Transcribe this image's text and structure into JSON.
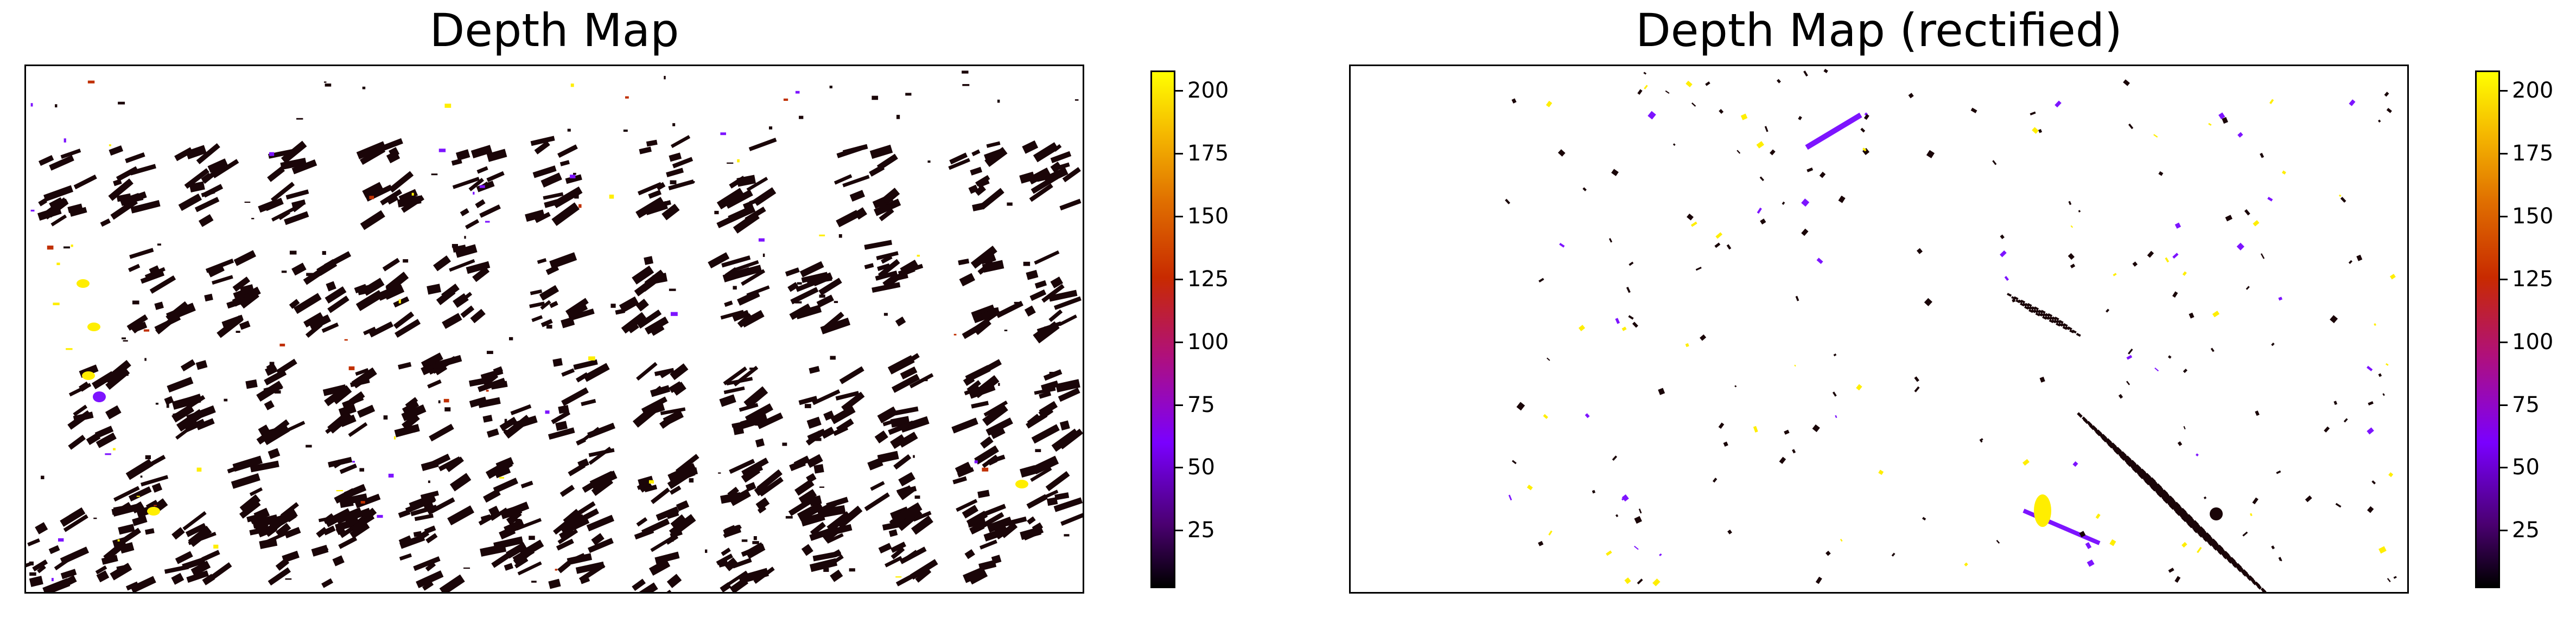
{
  "chart_data": [
    {
      "type": "heatmap",
      "title": "Depth Map",
      "colormap": "gnuplot",
      "color_range": [
        2,
        208
      ],
      "colorbar_ticks": [
        "25",
        "50",
        "75",
        "100",
        "125",
        "150",
        "175",
        "200"
      ],
      "tick_values": [
        25,
        50,
        75,
        100,
        125,
        150,
        175,
        200
      ],
      "axes_visible": false,
      "content": "sparse depth estimates; dense dark (near 0) blobs in a repeating pattern, scattered yellow and purple specks"
    },
    {
      "type": "heatmap",
      "title": "Depth Map (rectified)",
      "colormap": "gnuplot",
      "color_range": [
        2,
        208
      ],
      "colorbar_ticks": [
        "25",
        "50",
        "75",
        "100",
        "125",
        "150",
        "175",
        "200"
      ],
      "tick_values": [
        25,
        50,
        75,
        100,
        125,
        150,
        175,
        200
      ],
      "axes_visible": false,
      "content": "sparse depth estimates; dark diagonal streaks in lower right, scattered yellow and purple fragments"
    }
  ],
  "colors": {
    "dark": "#1a0508",
    "purple": "#7d14ff",
    "yellow": "#ffee00",
    "orange": "#ee8800",
    "red": "#c03000"
  }
}
